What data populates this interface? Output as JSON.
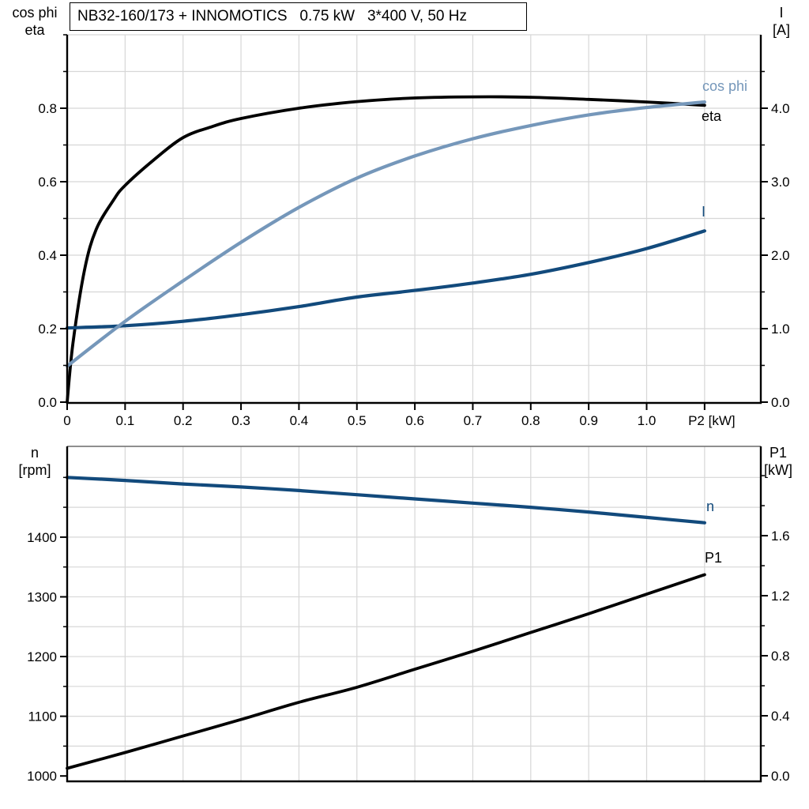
{
  "title_box": {
    "text": "NB32-160/173 + INNOMOTICS   0.75 kW   3*400 V, 50 Hz"
  },
  "colors": {
    "black": "#000000",
    "light_blue": "#7597ba",
    "dark_blue": "#124a7c",
    "grid": "#d7d7d7",
    "border_gray": "#6a6a6a",
    "axis": "#000000"
  },
  "chart_data": [
    {
      "type": "line",
      "title": "NB32-160/173 + INNOMOTICS   0.75 kW   3*400 V, 50 Hz",
      "xlabel": "P2 [kW]",
      "x": {
        "range": [
          0,
          1.197
        ],
        "label_at": 1.1,
        "ticks": [
          [
            "0",
            0
          ],
          [
            "0.1",
            0.1
          ],
          [
            "0.2",
            0.2
          ],
          [
            "0.3",
            0.3
          ],
          [
            "0.4",
            0.4
          ],
          [
            "0.5",
            0.5
          ],
          [
            "0.6",
            0.6
          ],
          [
            "0.7",
            0.7
          ],
          [
            "0.8",
            0.8
          ],
          [
            "0.9",
            0.9
          ],
          [
            "1.0",
            1.0
          ],
          [
            "",
            1.1
          ]
        ],
        "grid": [
          0.1,
          0.2,
          0.3,
          0.4,
          0.5,
          0.6,
          0.7,
          0.8,
          0.9,
          1.0,
          1.1
        ]
      },
      "left": {
        "title": [
          "cos phi",
          "eta"
        ],
        "range": [
          0,
          1.0
        ],
        "ticks": [
          [
            "0.0",
            0
          ],
          [
            "0.2",
            0.2
          ],
          [
            "0.4",
            0.4
          ],
          [
            "0.6",
            0.6
          ],
          [
            "0.8",
            0.8
          ]
        ],
        "minor": [
          0.1,
          0.3,
          0.5,
          0.7,
          0.9,
          1.0
        ],
        "grid": [
          0.1,
          0.2,
          0.3,
          0.4,
          0.5,
          0.6,
          0.7,
          0.8,
          0.9,
          1.0
        ]
      },
      "right": {
        "title": [
          "I",
          "[A]"
        ],
        "range": [
          0,
          5.0
        ],
        "ticks": [
          [
            "0.0",
            0
          ],
          [
            "1.0",
            1
          ],
          [
            "2.0",
            2
          ],
          [
            "3.0",
            3
          ],
          [
            "4.0",
            4
          ]
        ],
        "minor": [
          0.5,
          1.5,
          2.5,
          3.5,
          4.5
        ]
      },
      "top_border": false,
      "series": [
        {
          "name": "eta",
          "axis": "left",
          "color": "black",
          "width": 3.8,
          "points": [
            [
              0,
              0
            ],
            [
              0.01,
              0.16
            ],
            [
              0.03,
              0.36
            ],
            [
              0.05,
              0.47
            ],
            [
              0.08,
              0.55
            ],
            [
              0.1,
              0.59
            ],
            [
              0.15,
              0.66
            ],
            [
              0.2,
              0.72
            ],
            [
              0.25,
              0.75
            ],
            [
              0.3,
              0.772
            ],
            [
              0.4,
              0.8
            ],
            [
              0.5,
              0.818
            ],
            [
              0.6,
              0.828
            ],
            [
              0.7,
              0.831
            ],
            [
              0.8,
              0.83
            ],
            [
              0.9,
              0.824
            ],
            [
              1.0,
              0.817
            ],
            [
              1.1,
              0.808
            ]
          ]
        },
        {
          "name": "I",
          "axis": "right",
          "color": "dark_blue",
          "width": 4.2,
          "points": [
            [
              0,
              1.01
            ],
            [
              0.1,
              1.04
            ],
            [
              0.2,
              1.1
            ],
            [
              0.3,
              1.19
            ],
            [
              0.4,
              1.3
            ],
            [
              0.5,
              1.43
            ],
            [
              0.6,
              1.52
            ],
            [
              0.7,
              1.62
            ],
            [
              0.8,
              1.74
            ],
            [
              0.9,
              1.9
            ],
            [
              1.0,
              2.09
            ],
            [
              1.1,
              2.33
            ]
          ]
        },
        {
          "name": "cos phi",
          "axis": "left",
          "color": "light_blue",
          "width": 4.2,
          "points": [
            [
              0,
              0.098
            ],
            [
              0.1,
              0.22
            ],
            [
              0.2,
              0.33
            ],
            [
              0.3,
              0.435
            ],
            [
              0.4,
              0.53
            ],
            [
              0.5,
              0.61
            ],
            [
              0.6,
              0.67
            ],
            [
              0.7,
              0.717
            ],
            [
              0.8,
              0.753
            ],
            [
              0.9,
              0.782
            ],
            [
              1.0,
              0.802
            ],
            [
              1.1,
              0.817
            ]
          ]
        }
      ]
    },
    {
      "type": "line",
      "title": "",
      "xlabel": "",
      "x": {
        "range": [
          0,
          1.197
        ],
        "label_at": 1.1,
        "ticks": [],
        "grid": [
          0.1,
          0.2,
          0.3,
          0.4,
          0.5,
          0.6,
          0.7,
          0.8,
          0.9,
          1.0,
          1.1
        ]
      },
      "left": {
        "title": [
          "n",
          "[rpm]"
        ],
        "range": [
          991,
          1552
        ],
        "ticks": [
          [
            "1000",
            1000
          ],
          [
            "1100",
            1100
          ],
          [
            "1200",
            1200
          ],
          [
            "1300",
            1300
          ],
          [
            "1400",
            1400
          ]
        ],
        "minor": [
          1050,
          1150,
          1250,
          1350,
          1450,
          1500
        ],
        "grid": [
          1050,
          1100,
          1150,
          1200,
          1250,
          1300,
          1350,
          1400,
          1450,
          1500
        ]
      },
      "right": {
        "title": [
          "P1",
          "[kW]"
        ],
        "range": [
          -0.037,
          2.195
        ],
        "ticks": [
          [
            "0.0",
            0
          ],
          [
            "0.4",
            0.4
          ],
          [
            "0.8",
            0.8
          ],
          [
            "1.2",
            1.2
          ],
          [
            "1.6",
            1.6
          ]
        ],
        "minor": [
          0.2,
          0.6,
          1.0,
          1.4,
          1.8,
          2.0
        ]
      },
      "top_border": true,
      "series": [
        {
          "name": "n",
          "axis": "left",
          "color": "dark_blue",
          "width": 4.2,
          "points": [
            [
              0,
              1500
            ],
            [
              0.1,
              1495
            ],
            [
              0.2,
              1489
            ],
            [
              0.3,
              1484
            ],
            [
              0.4,
              1478
            ],
            [
              0.5,
              1471
            ],
            [
              0.6,
              1464
            ],
            [
              0.7,
              1457
            ],
            [
              0.8,
              1450
            ],
            [
              0.9,
              1442
            ],
            [
              1.0,
              1433
            ],
            [
              1.1,
              1424
            ]
          ]
        },
        {
          "name": "P1",
          "axis": "right",
          "color": "black",
          "width": 3.8,
          "points": [
            [
              0,
              0.05
            ],
            [
              0.1,
              0.155
            ],
            [
              0.2,
              0.265
            ],
            [
              0.3,
              0.375
            ],
            [
              0.4,
              0.49
            ],
            [
              0.5,
              0.59
            ],
            [
              0.6,
              0.71
            ],
            [
              0.7,
              0.83
            ],
            [
              0.8,
              0.955
            ],
            [
              0.9,
              1.08
            ],
            [
              1.0,
              1.21
            ],
            [
              1.1,
              1.34
            ]
          ]
        }
      ]
    }
  ]
}
